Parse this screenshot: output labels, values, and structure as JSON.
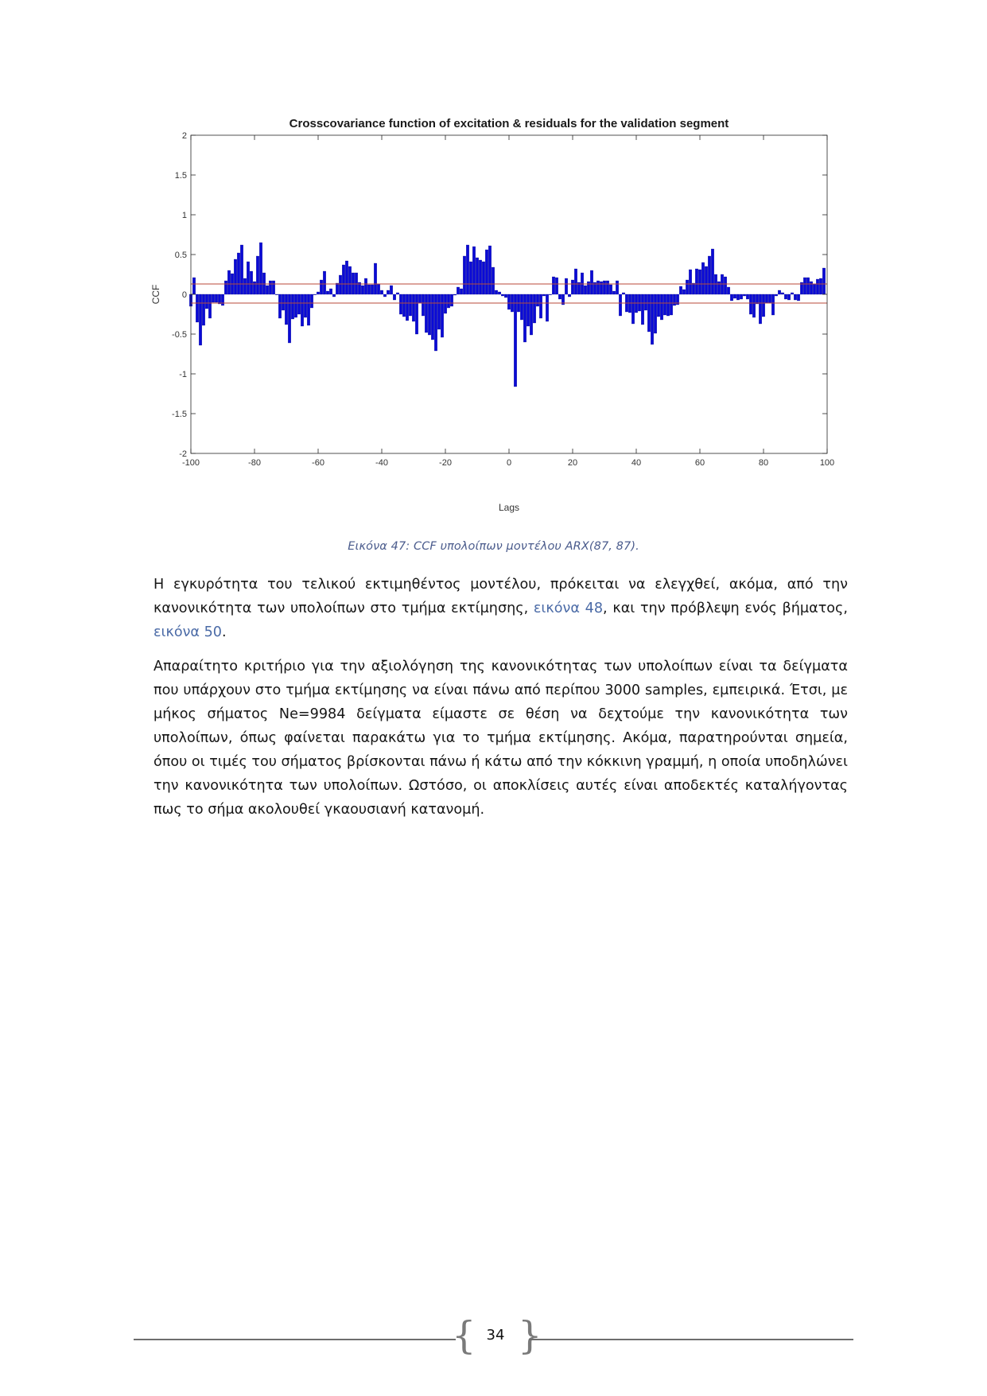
{
  "chart_data": {
    "type": "bar",
    "title": "Crosscovariance function of excitation & residuals for the validation segment",
    "xlabel": "Lags",
    "ylabel": "CCF",
    "xlim": [
      -100,
      100
    ],
    "ylim": [
      -2,
      2
    ],
    "xticks": [
      "-100",
      "-80",
      "-60",
      "-40",
      "-20",
      "0",
      "20",
      "40",
      "60",
      "80",
      "100"
    ],
    "yticks": [
      "2",
      "1.5",
      "1",
      "0.5",
      "0",
      "-0.5",
      "-1",
      "-1.5",
      "-2"
    ],
    "confidence_bounds": [
      0.13,
      -0.11
    ],
    "bar_color": "#0a0ad6",
    "bound_color": "#b84a3a",
    "x_start": -100,
    "values": [
      -0.15,
      0.21,
      -0.35,
      -0.64,
      -0.39,
      -0.18,
      -0.3,
      -0.1,
      -0.1,
      -0.12,
      -0.14,
      0.17,
      0.3,
      0.26,
      0.44,
      0.52,
      0.62,
      0.2,
      0.41,
      0.29,
      0.16,
      0.48,
      0.65,
      0.27,
      0.11,
      0.17,
      0.17,
      0.0,
      -0.3,
      -0.2,
      -0.38,
      -0.61,
      -0.31,
      -0.29,
      -0.25,
      -0.4,
      -0.29,
      -0.39,
      -0.17,
      0.0,
      0.03,
      0.18,
      0.29,
      0.04,
      0.07,
      -0.03,
      0.14,
      0.24,
      0.37,
      0.42,
      0.35,
      0.27,
      0.27,
      0.15,
      0.11,
      0.2,
      0.12,
      0.12,
      0.39,
      0.13,
      0.05,
      -0.03,
      0.05,
      0.11,
      -0.07,
      0.02,
      -0.25,
      -0.28,
      -0.33,
      -0.27,
      -0.34,
      -0.5,
      -0.11,
      -0.27,
      -0.48,
      -0.51,
      -0.57,
      -0.71,
      -0.44,
      -0.54,
      -0.24,
      -0.17,
      -0.15,
      -0.01,
      0.09,
      0.07,
      0.48,
      0.62,
      0.41,
      0.6,
      0.46,
      0.43,
      0.41,
      0.56,
      0.61,
      0.34,
      0.05,
      0.03,
      -0.02,
      -0.04,
      -0.19,
      -0.22,
      -1.16,
      -0.22,
      -0.32,
      -0.6,
      -0.4,
      -0.51,
      -0.36,
      -0.15,
      -0.3,
      -0.02,
      -0.34,
      0.0,
      0.22,
      0.21,
      -0.06,
      -0.13,
      0.2,
      -0.03,
      0.18,
      0.32,
      0.15,
      0.27,
      0.11,
      0.16,
      0.3,
      0.15,
      0.17,
      0.16,
      0.17,
      0.17,
      0.12,
      0.04,
      0.17,
      -0.27,
      0.02,
      -0.22,
      -0.23,
      -0.37,
      -0.23,
      -0.21,
      -0.38,
      -0.2,
      -0.47,
      -0.63,
      -0.49,
      -0.28,
      -0.32,
      -0.26,
      -0.27,
      -0.26,
      -0.14,
      -0.13,
      0.1,
      0.06,
      0.18,
      0.31,
      0.14,
      0.32,
      0.31,
      0.4,
      0.35,
      0.48,
      0.57,
      0.25,
      0.16,
      0.25,
      0.22,
      0.09,
      -0.08,
      -0.05,
      -0.07,
      -0.06,
      -0.02,
      -0.06,
      -0.25,
      -0.29,
      -0.12,
      -0.37,
      -0.28,
      -0.11,
      -0.11,
      -0.26,
      -0.02,
      0.05,
      0.02,
      -0.06,
      -0.07,
      0.02,
      -0.07,
      -0.08,
      0.15,
      0.21,
      0.21,
      0.16,
      0.13,
      0.19,
      0.2,
      0.33
    ]
  },
  "caption": "Εικόνα 47: CCF υπολοίπων μοντέλου ARX(87, 87).",
  "paragraph1": {
    "text_a": "Η εγκυρότητα του τελικού εκτιμηθέντος μοντέλου, πρόκειται να ελεγχθεί, ακόμα, από την κανονικότητα των υπολοίπων στο τμήμα εκτίμησης, ",
    "link_a": "εικόνα 48",
    "text_b": ", και την πρόβλεψη ενός βήματος, ",
    "link_b": "εικόνα 50",
    "text_c": "."
  },
  "paragraph2": "Απαραίτητο κριτήριο για την αξιολόγηση της κανονικότητας των υπολοίπων είναι τα δείγματα που υπάρχουν στο τμήμα εκτίμησης να είναι πάνω από περίπου 3000 samples, εμπειρικά. Έτσι, με μήκος σήματος Ne=9984 δείγματα είμαστε σε θέση να δεχτούμε την κανονικότητα των υπολοίπων, όπως φαίνεται παρακάτω για το τμήμα εκτίμησης. Ακόμα, παρατηρούνται σημεία, όπου οι τιμές του σήματος βρίσκονται πάνω ή κάτω από την κόκκινη γραμμή, η οποία υποδηλώνει την κανονικότητα των υπολοίπων. Ωστόσο, οι αποκλίσεις αυτές είναι αποδεκτές καταλήγοντας πως το σήμα ακολουθεί γκαουσιανή κατανομή.",
  "footer": {
    "page_number": "34",
    "bracket_left": "{",
    "bracket_right": "}"
  }
}
